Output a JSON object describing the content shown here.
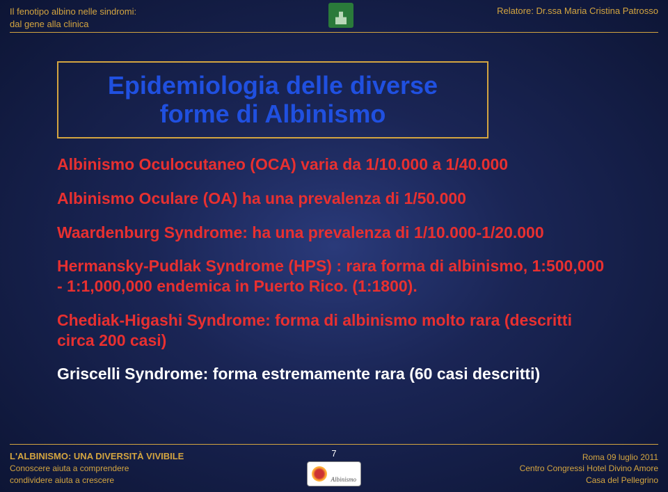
{
  "header": {
    "left_line1": "Il fenotipo albino nelle sindromi:",
    "left_line2": "dal gene alla clinica",
    "right": "Relatore: Dr.ssa Maria Cristina Patrosso"
  },
  "title": "Epidemiologia delle diverse forme di Albinismo",
  "content": {
    "p1": "Albinismo Oculocutaneo (OCA) varia da 1/10.000 a 1/40.000",
    "p2": "Albinismo Oculare (OA) ha una prevalenza di 1/50.000",
    "p3": "Waardenburg Syndrome: ha una prevalenza di 1/10.000-1/20.000",
    "p4": "Hermansky-Pudlak Syndrome (HPS) : rara forma di albinismo, 1:500,000 - 1:1,000,000  endemica in Puerto Rico. (1:1800).",
    "p5": "Chediak-Higashi Syndrome: forma di albinismo molto rara (descritti circa 200 casi)",
    "p6": "Griscelli Syndrome: forma estremamente rara (60 casi descritti)"
  },
  "footer": {
    "left_line1": "L'ALBINISMO: UNA DIVERSITÀ VIVIBILE",
    "left_line2": "Conoscere aiuta a comprendere",
    "left_line3": "condividere aiuta a crescere",
    "right_line1": "Roma 09 luglio 2011",
    "right_line2": "Centro Congressi Hotel Divino Amore",
    "right_line3": "Casa del Pellegrino",
    "page_number": "7",
    "logo_text": "Albinismo"
  },
  "colors": {
    "accent": "#d4a540",
    "title": "#2050e0",
    "body_red": "#e83030",
    "body_white": "#ffffff"
  }
}
